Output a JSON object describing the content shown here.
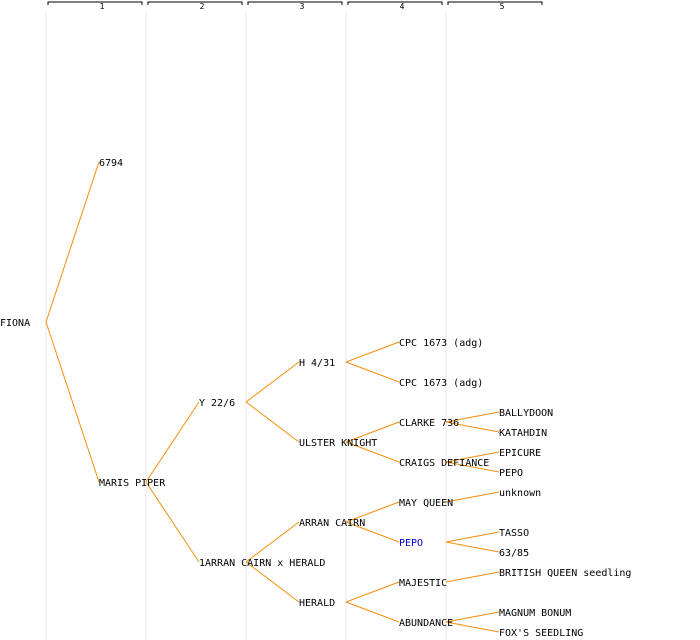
{
  "generations": [
    "1",
    "2",
    "3",
    "4",
    "5"
  ],
  "colors": {
    "edge": "#f0900a",
    "link": "#0000cc",
    "text": "#000000",
    "gridline": "#e8e8e8"
  },
  "nodes": {
    "root": "FIONA",
    "g1_a": "6794",
    "g1_b": "MARIS PIPER",
    "g2_a": "Y 22/6",
    "g2_b": "1ARRAN CAIRN x HERALD",
    "g3_a": "H 4/31",
    "g3_b": "ULSTER KNIGHT",
    "g3_c": "ARRAN CAIRN",
    "g3_d": "HERALD",
    "g4_a": "CPC 1673 (adg)",
    "g4_b": "CPC 1673 (adg)",
    "g4_c": "CLARKE 736",
    "g4_d": "CRAIGS DEFIANCE",
    "g4_e": "MAY QUEEN",
    "g4_f": "PEPO",
    "g4_g": "MAJESTIC",
    "g4_h": "ABUNDANCE",
    "g5_a": "BALLYDOON",
    "g5_b": "KATAHDIN",
    "g5_c": "EPICURE",
    "g5_d": "PEPO",
    "g5_e": "unknown",
    "g5_f": "TASSO",
    "g5_g": "63/85",
    "g5_h": "BRITISH QUEEN seedling",
    "g5_i": "MAGNUM BONUM",
    "g5_j": "FOX'S SEEDLING"
  }
}
